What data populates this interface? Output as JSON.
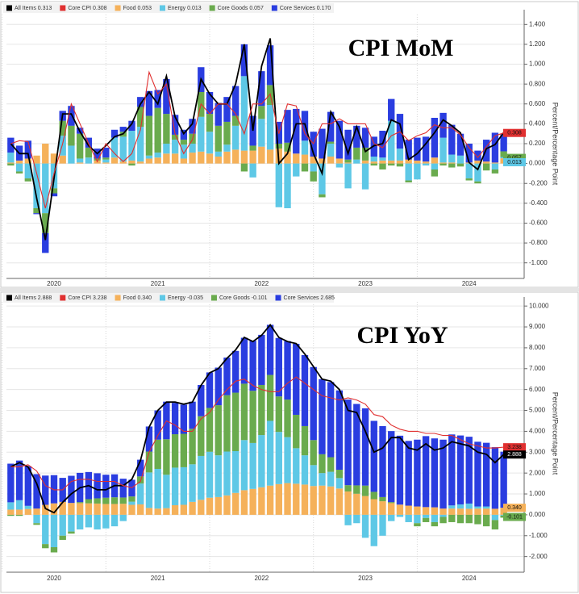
{
  "chart_data": [
    {
      "type": "bar",
      "stacked": true,
      "title": "CPI MoM",
      "y_label": "Percent/Percentage Point",
      "grid": true,
      "legend": "top-left",
      "categories": [
        null,
        null,
        null,
        null,
        null,
        "2020",
        null,
        null,
        null,
        null,
        null,
        null,
        null,
        null,
        null,
        null,
        null,
        "2021",
        null,
        null,
        null,
        null,
        null,
        null,
        null,
        null,
        null,
        null,
        null,
        "2022",
        null,
        null,
        null,
        null,
        null,
        null,
        null,
        null,
        null,
        null,
        null,
        "2023",
        null,
        null,
        null,
        null,
        null,
        null,
        null,
        null,
        null,
        null,
        null,
        "2024",
        null,
        null,
        null,
        null
      ],
      "ylim": [
        -1.1,
        1.5
      ],
      "yticks": [
        {
          "value": -1.0,
          "label": "-1.000"
        },
        {
          "value": -0.8,
          "label": "-0.800"
        },
        {
          "value": -0.6,
          "label": "-0.600"
        },
        {
          "value": -0.4,
          "label": "-0.400"
        },
        {
          "value": -0.2,
          "label": "-0.200"
        },
        {
          "value": 0,
          "label": "0.000"
        },
        {
          "value": 0.2,
          "label": "0.200"
        },
        {
          "value": 0.4,
          "label": "0.400"
        },
        {
          "value": 0.6,
          "label": "0.600"
        },
        {
          "value": 0.8,
          "label": "0.800"
        },
        {
          "value": 1.0,
          "label": "1.000"
        },
        {
          "value": 1.2,
          "label": "1.200"
        },
        {
          "value": 1.4,
          "label": "1.400"
        }
      ],
      "series": [
        {
          "name": "All Items 0.313",
          "type": "line",
          "color": "#000000",
          "values": [
            0.2,
            0.1,
            0.1,
            -0.35,
            -0.77,
            -0.15,
            0.5,
            0.5,
            0.32,
            0.18,
            0.1,
            0.18,
            0.27,
            0.3,
            0.4,
            0.6,
            0.72,
            0.6,
            0.88,
            0.47,
            0.3,
            0.4,
            0.85,
            0.7,
            0.6,
            0.6,
            0.8,
            1.2,
            0.33,
            0.98,
            1.26,
            0.0,
            0.1,
            0.4,
            0.4,
            0.1,
            -0.1,
            0.52,
            0.37,
            0.1,
            0.37,
            0.12,
            0.18,
            0.2,
            0.44,
            0.4,
            0.04,
            0.1,
            0.2,
            0.31,
            0.44,
            0.38,
            0.31,
            0.01,
            -0.06,
            0.15,
            0.19,
            0.313
          ]
        },
        {
          "name": "Core CPI 0.308",
          "type": "line",
          "color": "#e03030",
          "values": [
            0.2,
            0.23,
            0.22,
            -0.1,
            -0.45,
            -0.1,
            0.2,
            0.6,
            0.4,
            0.2,
            0.02,
            0.2,
            0.1,
            0.02,
            0.1,
            0.34,
            0.92,
            0.7,
            0.8,
            0.3,
            0.1,
            0.24,
            0.6,
            0.5,
            0.6,
            0.6,
            0.5,
            0.3,
            0.6,
            0.6,
            0.7,
            0.3,
            0.6,
            0.58,
            0.3,
            0.2,
            0.4,
            0.4,
            0.45,
            0.4,
            0.4,
            0.4,
            0.2,
            0.16,
            0.28,
            0.32,
            0.23,
            0.28,
            0.31,
            0.39,
            0.36,
            0.36,
            0.29,
            0.16,
            0.06,
            0.17,
            0.28,
            0.308
          ]
        },
        {
          "name": "Food 0.053",
          "type": "bar",
          "color": "#f5b15a",
          "values": [
            0.01,
            0.03,
            0.05,
            0.08,
            0.2,
            0.1,
            0.08,
            0.0,
            0.01,
            0.0,
            0.03,
            0.01,
            0.06,
            0.02,
            0.03,
            0.02,
            0.05,
            0.06,
            0.1,
            0.1,
            0.05,
            0.11,
            0.12,
            0.1,
            0.07,
            0.12,
            0.14,
            0.13,
            0.13,
            0.17,
            0.14,
            0.15,
            0.12,
            0.1,
            0.09,
            0.07,
            0.05,
            0.07,
            0.05,
            0.01,
            0.0,
            0.03,
            0.02,
            0.03,
            0.03,
            0.03,
            0.04,
            0.03,
            0.02,
            0.06,
            0.01,
            0.01,
            0.0,
            0.01,
            0.03,
            0.02,
            0.01,
            0.053
          ]
        },
        {
          "name": "Energy 0.013",
          "type": "bar",
          "color": "#5ec8e6",
          "values": [
            0.1,
            -0.08,
            -0.15,
            -0.45,
            -0.5,
            -0.25,
            0.2,
            0.18,
            0.04,
            0.06,
            0.0,
            0.03,
            0.2,
            0.25,
            0.3,
            0.35,
            0.03,
            0.05,
            0.1,
            0.14,
            0.14,
            0.09,
            0.35,
            0.22,
            0.05,
            0.07,
            0.24,
            0.75,
            -0.14,
            0.28,
            0.45,
            -0.44,
            -0.45,
            -0.13,
            0.14,
            -0.08,
            -0.31,
            0.13,
            -0.04,
            -0.25,
            0.04,
            -0.26,
            0.05,
            0.03,
            0.4,
            0.12,
            -0.17,
            -0.16,
            -0.02,
            -0.06,
            0.25,
            0.08,
            0.08,
            -0.15,
            -0.18,
            0.0,
            -0.06,
            0.013
          ]
        },
        {
          "name": "Core Goods 0.057",
          "type": "bar",
          "color": "#6aab4e",
          "values": [
            -0.02,
            -0.02,
            -0.03,
            -0.05,
            -0.2,
            -0.05,
            0.15,
            0.2,
            0.25,
            0.1,
            0.02,
            0.02,
            0.0,
            0.05,
            -0.02,
            0.2,
            0.4,
            0.45,
            0.3,
            0.05,
            0.05,
            0.1,
            0.25,
            0.18,
            0.26,
            0.23,
            0.1,
            -0.08,
            0.05,
            0.13,
            0.2,
            0.05,
            0.09,
            0.0,
            -0.08,
            -0.1,
            -0.03,
            0.02,
            0.0,
            0.03,
            0.12,
            0.13,
            -0.02,
            -0.06,
            -0.02,
            -0.03,
            -0.02,
            0.0,
            0.0,
            -0.07,
            -0.02,
            -0.04,
            -0.03,
            -0.02,
            -0.02,
            -0.07,
            -0.04,
            0.057
          ]
        },
        {
          "name": "Core Services 0.170",
          "type": "bar",
          "color": "#2a3de0",
          "values": [
            0.15,
            0.15,
            0.18,
            -0.01,
            -0.2,
            -0.03,
            0.1,
            0.2,
            0.06,
            0.1,
            0.1,
            0.1,
            0.08,
            0.05,
            0.1,
            0.1,
            0.25,
            0.18,
            0.35,
            0.2,
            0.1,
            0.15,
            0.25,
            0.22,
            0.23,
            0.25,
            0.3,
            0.32,
            0.3,
            0.35,
            0.4,
            0.22,
            0.33,
            0.45,
            0.3,
            0.25,
            0.3,
            0.3,
            0.38,
            0.3,
            0.22,
            0.2,
            0.2,
            0.27,
            0.22,
            0.35,
            0.2,
            0.23,
            0.25,
            0.4,
            0.25,
            0.3,
            0.22,
            0.19,
            0.1,
            0.22,
            0.3,
            0.17
          ]
        }
      ],
      "end_labels": [
        {
          "value": 0.308,
          "label": "0.308",
          "color": "#e03030"
        },
        {
          "value": 0.057,
          "label": "0.057",
          "color": "#6aab4e"
        },
        {
          "value": 0.013,
          "label": "0.013",
          "color": "#5ec8e6"
        }
      ]
    },
    {
      "type": "bar",
      "stacked": true,
      "title": "CPI YoY",
      "y_label": "Percent/Percentage Point",
      "grid": true,
      "legend": "top-left",
      "categories": [
        null,
        null,
        null,
        null,
        null,
        "2020",
        null,
        null,
        null,
        null,
        null,
        null,
        null,
        null,
        null,
        null,
        null,
        "2021",
        null,
        null,
        null,
        null,
        null,
        null,
        null,
        null,
        null,
        null,
        null,
        "2022",
        null,
        null,
        null,
        null,
        null,
        null,
        null,
        null,
        null,
        null,
        null,
        "2023",
        null,
        null,
        null,
        null,
        null,
        null,
        null,
        null,
        null,
        null,
        null,
        "2024",
        null,
        null,
        null,
        null
      ],
      "ylim": [
        -2.4,
        10.2
      ],
      "yticks": [
        {
          "value": -2,
          "label": "-2.000"
        },
        {
          "value": -1,
          "label": "-1.000"
        },
        {
          "value": 0,
          "label": "0.000"
        },
        {
          "value": 1,
          "label": "1.000"
        },
        {
          "value": 2,
          "label": "2.000"
        },
        {
          "value": 3,
          "label": "3.000"
        },
        {
          "value": 4,
          "label": "4.000"
        },
        {
          "value": 5,
          "label": "5.000"
        },
        {
          "value": 6,
          "label": "6.000"
        },
        {
          "value": 7,
          "label": "7.000"
        },
        {
          "value": 8,
          "label": "8.000"
        },
        {
          "value": 9,
          "label": "9.000"
        },
        {
          "value": 10,
          "label": "10.000"
        }
      ],
      "series": [
        {
          "name": "All Items 2.888",
          "type": "line",
          "color": "#000000",
          "values": [
            2.3,
            2.5,
            2.3,
            1.5,
            0.3,
            0.1,
            0.6,
            1.0,
            1.3,
            1.4,
            1.2,
            1.2,
            1.4,
            1.4,
            1.7,
            2.6,
            4.2,
            5.0,
            5.4,
            5.4,
            5.3,
            5.4,
            6.2,
            6.8,
            7.0,
            7.5,
            7.9,
            8.5,
            8.3,
            8.6,
            9.1,
            8.5,
            8.3,
            8.2,
            7.7,
            7.1,
            6.5,
            6.4,
            6.0,
            5.0,
            4.9,
            4.0,
            3.0,
            3.2,
            3.7,
            3.7,
            3.2,
            3.1,
            3.4,
            3.1,
            3.2,
            3.5,
            3.4,
            3.3,
            3.0,
            2.9,
            2.5,
            2.888
          ]
        },
        {
          "name": "Core CPI 3.238",
          "type": "line",
          "color": "#e03030",
          "values": [
            2.3,
            2.3,
            2.4,
            2.1,
            1.4,
            1.2,
            1.2,
            1.6,
            1.7,
            1.7,
            1.6,
            1.6,
            1.6,
            1.4,
            1.3,
            1.6,
            3.0,
            3.8,
            4.5,
            4.3,
            4.0,
            4.0,
            4.6,
            4.9,
            5.5,
            6.0,
            6.4,
            6.5,
            6.2,
            6.0,
            5.9,
            5.9,
            6.3,
            6.6,
            6.3,
            6.0,
            5.7,
            5.6,
            5.5,
            5.6,
            5.5,
            5.3,
            4.8,
            4.7,
            4.3,
            4.1,
            4.0,
            4.0,
            3.9,
            3.9,
            3.8,
            3.8,
            3.6,
            3.4,
            3.3,
            3.2,
            3.2,
            3.238
          ]
        },
        {
          "name": "Food 0.340",
          "type": "bar",
          "color": "#f5b15a",
          "values": [
            0.25,
            0.25,
            0.28,
            0.3,
            0.48,
            0.55,
            0.62,
            0.57,
            0.56,
            0.55,
            0.54,
            0.52,
            0.52,
            0.53,
            0.48,
            0.5,
            0.33,
            0.3,
            0.32,
            0.46,
            0.48,
            0.62,
            0.72,
            0.82,
            0.85,
            0.93,
            1.05,
            1.18,
            1.24,
            1.32,
            1.4,
            1.47,
            1.52,
            1.49,
            1.45,
            1.38,
            1.4,
            1.36,
            1.26,
            1.12,
            1.01,
            0.9,
            0.75,
            0.65,
            0.56,
            0.49,
            0.44,
            0.4,
            0.37,
            0.36,
            0.3,
            0.3,
            0.3,
            0.29,
            0.3,
            0.3,
            0.29,
            0.34
          ]
        },
        {
          "name": "Energy -0.035",
          "type": "bar",
          "color": "#5ec8e6",
          "values": [
            0.35,
            0.45,
            0.15,
            -0.4,
            -1.4,
            -1.55,
            -1.0,
            -0.8,
            -0.7,
            -0.6,
            -0.7,
            -0.65,
            -0.55,
            -0.3,
            0.15,
            1.0,
            1.7,
            1.9,
            1.6,
            1.8,
            1.8,
            1.8,
            2.1,
            2.2,
            2.0,
            2.1,
            2.0,
            2.4,
            2.2,
            2.5,
            3.1,
            2.5,
            2.2,
            1.7,
            1.4,
            1.0,
            0.6,
            0.7,
            0.5,
            -0.5,
            -0.4,
            -1.1,
            -1.5,
            -1.0,
            -0.3,
            -0.1,
            -0.35,
            -0.4,
            -0.15,
            -0.35,
            -0.1,
            0.15,
            0.2,
            0.25,
            0.1,
            0.1,
            -0.25,
            -0.035
          ]
        },
        {
          "name": "Core Goods -0.101",
          "type": "bar",
          "color": "#6aab4e",
          "values": [
            -0.05,
            -0.05,
            0.0,
            -0.08,
            -0.2,
            -0.25,
            -0.2,
            -0.1,
            0.05,
            0.2,
            0.25,
            0.3,
            0.32,
            0.3,
            0.25,
            0.34,
            1.0,
            1.4,
            1.7,
            1.6,
            1.6,
            1.7,
            1.9,
            2.1,
            2.4,
            2.7,
            2.8,
            2.7,
            2.5,
            2.4,
            2.2,
            1.7,
            1.8,
            1.6,
            1.4,
            1.2,
            0.9,
            0.7,
            0.4,
            0.3,
            0.4,
            0.5,
            0.35,
            0.2,
            0.05,
            0.0,
            0.0,
            -0.15,
            -0.2,
            -0.2,
            -0.3,
            -0.35,
            -0.4,
            -0.4,
            -0.45,
            -0.55,
            -0.45,
            -0.101
          ]
        },
        {
          "name": "Core Services 2.685",
          "type": "bar",
          "color": "#2a3de0",
          "values": [
            1.85,
            1.9,
            1.9,
            1.65,
            1.4,
            1.35,
            1.15,
            1.3,
            1.4,
            1.3,
            1.2,
            1.1,
            1.1,
            0.9,
            0.8,
            0.8,
            1.2,
            1.4,
            1.8,
            1.5,
            1.4,
            1.3,
            1.5,
            1.7,
            1.8,
            1.8,
            2.0,
            2.2,
            2.4,
            2.4,
            2.4,
            2.8,
            2.8,
            3.4,
            3.4,
            3.5,
            3.6,
            3.6,
            3.8,
            4.1,
            3.9,
            3.7,
            3.4,
            3.4,
            3.4,
            3.3,
            3.1,
            3.2,
            3.4,
            3.3,
            3.3,
            3.4,
            3.3,
            3.2,
            3.1,
            3.05,
            2.95,
            2.685
          ]
        }
      ],
      "end_labels": [
        {
          "value": 3.238,
          "label": "3.238",
          "color": "#e03030"
        },
        {
          "value": 2.888,
          "label": "2.888",
          "color": "#000000"
        },
        {
          "value": 0.34,
          "label": "0.340",
          "color": "#f5b15a"
        },
        {
          "value": -0.101,
          "label": "-0.101",
          "color": "#6aab4e"
        }
      ]
    }
  ]
}
